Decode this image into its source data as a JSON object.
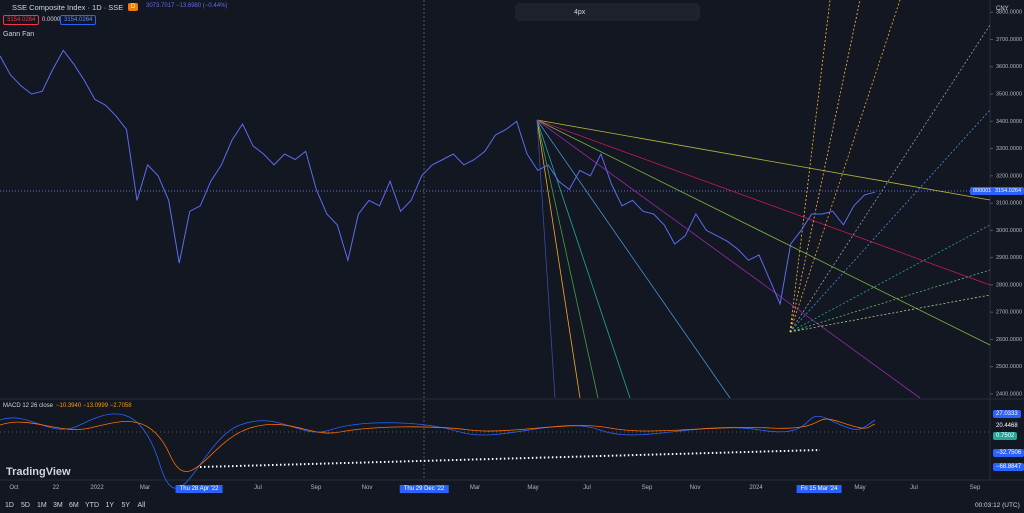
{
  "chart_data": {
    "type": "line",
    "title": "SSE Composite Index · 1D · SSE",
    "interval": "D",
    "ohlc": "3073.7017 −13.6980 (−0.44%)",
    "quote_boxes": [
      "3154.0264",
      "0.0000",
      "3154.0264"
    ],
    "drawing": "Gann Fan",
    "toolbar_width": "4px",
    "currency": "CNY",
    "symbol_tag": "000001",
    "last_price": "3154.0264",
    "color": "#5b6cf0",
    "values": [
      3640,
      3570,
      3530,
      3500,
      3510,
      3590,
      3660,
      3610,
      3550,
      3480,
      3460,
      3420,
      3370,
      3110,
      3240,
      3200,
      3110,
      2880,
      3070,
      3090,
      3180,
      3240,
      3330,
      3390,
      3310,
      3280,
      3240,
      3280,
      3260,
      3290,
      3150,
      3060,
      3020,
      2890,
      3060,
      3110,
      3090,
      3180,
      3070,
      3110,
      3200,
      3240,
      3260,
      3280,
      3240,
      3260,
      3290,
      3350,
      3370,
      3400,
      3280,
      3220,
      3240,
      3180,
      3150,
      3220,
      3200,
      3280,
      3170,
      3090,
      3110,
      3070,
      3060,
      3020,
      2950,
      2980,
      3060,
      3000,
      2980,
      2960,
      2930,
      2890,
      2910,
      2820,
      2730,
      2950,
      3000,
      3060,
      3060,
      3070,
      3020,
      3090,
      3130,
      3140
    ],
    "ylim": [
      2385,
      3845
    ],
    "yticks": [
      {
        "value": 3800,
        "label": "3800.0000"
      },
      {
        "value": 3700,
        "label": "3700.0000"
      },
      {
        "value": 3600,
        "label": "3600.0000"
      },
      {
        "value": 3500,
        "label": "3500.0000"
      },
      {
        "value": 3400,
        "label": "3400.0000"
      },
      {
        "value": 3300,
        "label": "3300.0000"
      },
      {
        "value": 3200,
        "label": "3200.0000"
      },
      {
        "value": 3100,
        "label": "3100.0000"
      },
      {
        "value": 3000,
        "label": "3000.0000"
      },
      {
        "value": 2900,
        "label": "2900.0000"
      },
      {
        "value": 2800,
        "label": "2800.0000"
      },
      {
        "value": 2700,
        "label": "2700.0000"
      },
      {
        "value": 2600,
        "label": "2600.0000"
      },
      {
        "value": 2500,
        "label": "2500.0000"
      },
      {
        "value": 2400,
        "label": "2400.0000"
      }
    ],
    "macd": {
      "label": "MACD 12 26 close",
      "values": "−10.3940 −13.0999 −2.7058",
      "axis_labels": [
        "27.0333",
        "20.4468",
        "0.7502",
        "−32.7506",
        "−68.8847"
      ]
    },
    "time_labels": [
      "Oct",
      "22",
      "2022",
      "Mar",
      "Thu 28 Apr '22",
      "Jul",
      "Sep",
      "Nov",
      "Thu 29 Dec '22",
      "Mar",
      "May",
      "Jul",
      "Sep",
      "Nov",
      "2024",
      "Fri 15 Mar '24",
      "May",
      "Jul",
      "Sep"
    ]
  },
  "ui": {
    "logo": "TradingView",
    "ranges": [
      "1D",
      "5D",
      "1M",
      "3M",
      "6M",
      "YTD",
      "1Y",
      "5Y",
      "All"
    ],
    "clock": "00:03:12 (UTC)"
  }
}
